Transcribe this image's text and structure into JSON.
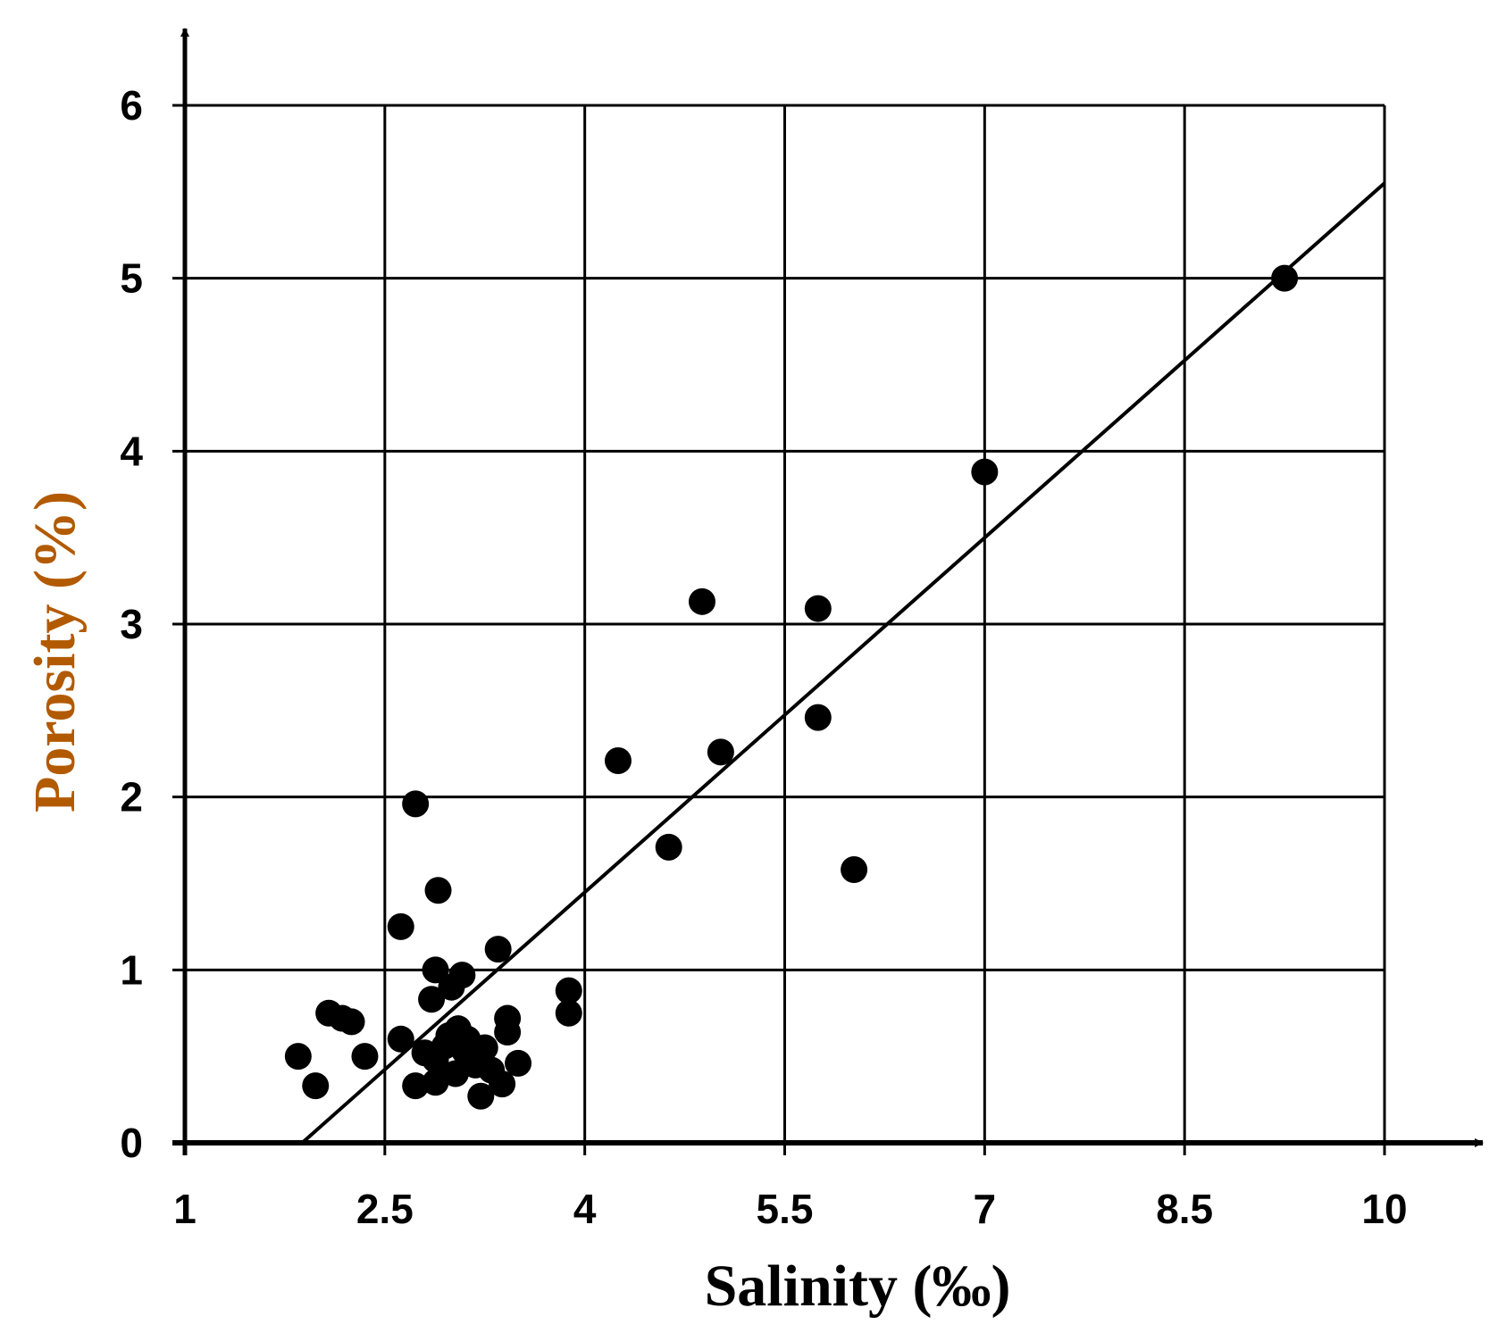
{
  "chart_data": {
    "type": "scatter",
    "xlabel": "Salinity (‰)",
    "ylabel": "Porosity (%)",
    "x_ticks": [
      1,
      2.5,
      4,
      5.5,
      7,
      8.5,
      10
    ],
    "y_ticks": [
      0,
      1,
      2,
      3,
      4,
      5,
      6
    ],
    "x_tick_labels": [
      "1",
      "2.5",
      "4",
      "5.5",
      "7",
      "8.5",
      "10"
    ],
    "y_tick_labels": [
      "0",
      "1",
      "2",
      "3",
      "4",
      "5",
      "6"
    ],
    "xlim": [
      1,
      10
    ],
    "ylim": [
      0,
      6
    ],
    "grid": true,
    "colors": {
      "points": "#000000",
      "grid": "#000000",
      "axis_title_y": "#b25a00",
      "axis_title_x": "#000000"
    },
    "series": [
      {
        "points": [
          [
            1.85,
            0.5
          ],
          [
            1.98,
            0.33
          ],
          [
            2.08,
            0.75
          ],
          [
            2.18,
            0.72
          ],
          [
            2.25,
            0.7
          ],
          [
            2.35,
            0.5
          ],
          [
            2.62,
            1.25
          ],
          [
            2.62,
            0.6
          ],
          [
            2.73,
            0.33
          ],
          [
            2.73,
            1.96
          ],
          [
            2.8,
            0.52
          ],
          [
            2.85,
            0.83
          ],
          [
            2.88,
            0.48
          ],
          [
            2.88,
            1.0
          ],
          [
            2.88,
            0.35
          ],
          [
            2.9,
            1.46
          ],
          [
            2.95,
            0.56
          ],
          [
            2.98,
            0.62
          ],
          [
            3.0,
            0.9
          ],
          [
            3.03,
            0.4
          ],
          [
            3.05,
            0.66
          ],
          [
            3.08,
            0.97
          ],
          [
            3.1,
            0.53
          ],
          [
            3.12,
            0.6
          ],
          [
            3.18,
            0.45
          ],
          [
            3.22,
            0.27
          ],
          [
            3.25,
            0.55
          ],
          [
            3.3,
            0.42
          ],
          [
            3.35,
            1.12
          ],
          [
            3.38,
            0.34
          ],
          [
            3.42,
            0.64
          ],
          [
            3.42,
            0.72
          ],
          [
            3.5,
            0.46
          ],
          [
            3.88,
            0.88
          ],
          [
            3.88,
            0.75
          ],
          [
            4.25,
            2.21
          ],
          [
            4.63,
            1.71
          ],
          [
            4.88,
            3.13
          ],
          [
            5.02,
            2.26
          ],
          [
            5.75,
            3.09
          ],
          [
            5.75,
            2.46
          ],
          [
            6.02,
            1.58
          ],
          [
            7.0,
            3.88
          ],
          [
            9.25,
            5.0
          ]
        ]
      }
    ],
    "trendline": {
      "type": "linear",
      "x": [
        1.88,
        10.0
      ],
      "y": [
        0.0,
        5.55
      ]
    }
  }
}
